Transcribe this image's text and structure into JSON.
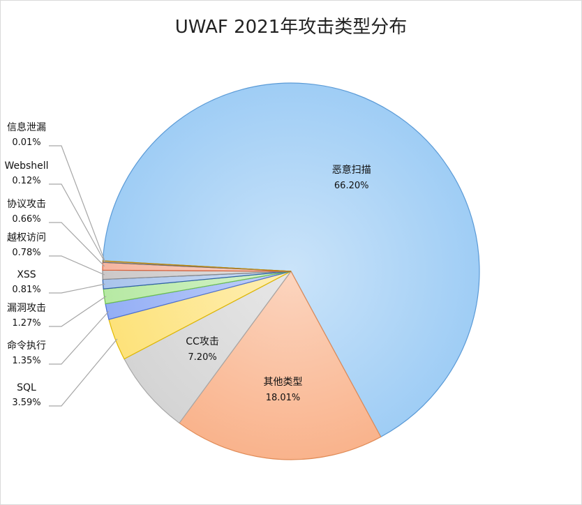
{
  "chart_data": {
    "type": "pie",
    "title": "UWAF 2021年攻击类型分布",
    "slices": [
      {
        "name": "恶意扫描",
        "label": "66.20%",
        "value": 66.2,
        "color": "#9fcdf5",
        "stroke": "#5a9ad6"
      },
      {
        "name": "其他类型",
        "label": "18.01%",
        "value": 18.01,
        "color": "#f9b38c",
        "stroke": "#e08a55"
      },
      {
        "name": "CC攻击",
        "label": "7.20%",
        "value": 7.2,
        "color": "#d4d4d4",
        "stroke": "#a6a6a6"
      },
      {
        "name": "SQL",
        "label": "3.59%",
        "value": 3.59,
        "color": "#fde27a",
        "stroke": "#e0b800"
      },
      {
        "name": "命令执行",
        "label": "1.35%",
        "value": 1.35,
        "color": "#93aef5",
        "stroke": "#4a6fd6"
      },
      {
        "name": "漏洞攻击",
        "label": "1.27%",
        "value": 1.27,
        "color": "#b6e9a3",
        "stroke": "#6bbf4e"
      },
      {
        "name": "XSS",
        "label": "0.81%",
        "value": 0.81,
        "color": "#a9c4ec",
        "stroke": "#2f5fa8"
      },
      {
        "name": "越权访问",
        "label": "0.78%",
        "value": 0.78,
        "color": "#ccc8c8",
        "stroke": "#8a8a8a"
      },
      {
        "name": "协议攻击",
        "label": "0.66%",
        "value": 0.66,
        "color": "#f5b5a0",
        "stroke": "#d9603a"
      },
      {
        "name": "Webshell",
        "label": "0.12%",
        "value": 0.12,
        "color": "#bfbfbf",
        "stroke": "#6f6f6f"
      },
      {
        "name": "信息泄漏",
        "label": "0.01%",
        "value": 0.01,
        "color": "#f7c874",
        "stroke": "#c98b00"
      }
    ],
    "legend": "none"
  }
}
